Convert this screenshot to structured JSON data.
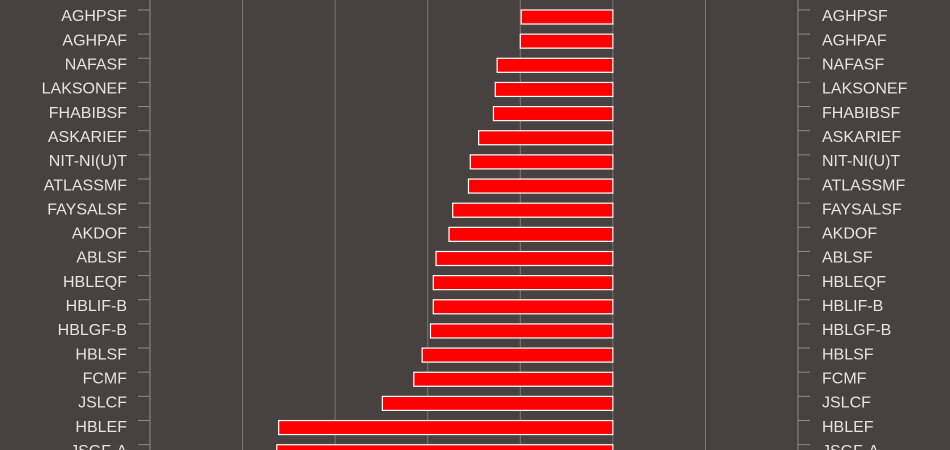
{
  "chart_data": {
    "type": "bar",
    "orientation": "horizontal",
    "categories": [
      "AGHPSF",
      "AGHPAF",
      "NAFASF",
      "LAKSONEF",
      "FHABIBSF",
      "ASKARIEF",
      "NIT-NI(U)T",
      "ATLASSMF",
      "FAYSALSF",
      "AKDOF",
      "ABLSF",
      "HBLEQF",
      "HBLIF-B",
      "HBLGF-B",
      "HBLSF",
      "FCMF",
      "JSLCF",
      "HBLEF",
      "JSGF-A"
    ],
    "values": [
      -0.99,
      -1.0,
      -1.25,
      -1.27,
      -1.29,
      -1.45,
      -1.54,
      -1.56,
      -1.73,
      -1.77,
      -1.91,
      -1.94,
      -1.94,
      -1.97,
      -2.06,
      -2.15,
      -2.49,
      -3.61,
      -3.63
    ],
    "color": "#ff0000",
    "xlim": [
      -5,
      2
    ],
    "xticks": [
      -4,
      -3,
      -2,
      -1,
      0,
      1
    ],
    "grid": true
  }
}
